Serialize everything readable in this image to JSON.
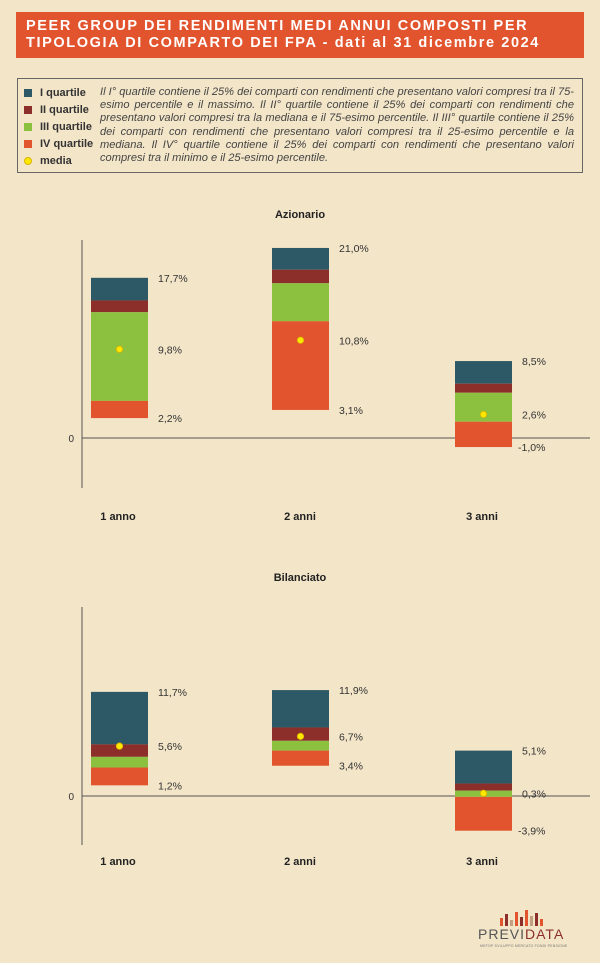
{
  "header": {
    "line1": "PEER GROUP DEI RENDIMENTI MEDI ANNUI COMPOSTI PER",
    "line2": "TIPOLOGIA DI COMPARTO DEI FPA - dati al 31 dicembre 2024"
  },
  "legend": {
    "items": [
      {
        "label": "I quartile",
        "color": "#2d5865"
      },
      {
        "label": "II quartile",
        "color": "#8c2f2b"
      },
      {
        "label": "III quartile",
        "color": "#8cc140"
      },
      {
        "label": "IV quartile",
        "color": "#e2542d"
      }
    ],
    "media_label": "media",
    "media_color": "#ffe800",
    "description": "Il I° quartile contiene il 25% dei comparti con rendimenti che presentano valori compresi tra il 75-esimo percentile e il massimo. Il II° quartile contiene il 25% dei comparti con rendimenti che presentano valori compresi tra la mediana e il 75-esimo percentile. Il III° quartile contiene il 25% dei comparti con rendimenti che presentano valori compresi tra il 25-esimo percentile e la mediana. Il IV° quartile contiene il 25% dei comparti con rendimenti che presentano valori compresi tra il minimo e il 25-esimo percentile."
  },
  "chart_data": [
    {
      "type": "bar",
      "title": "Azionario",
      "zero_label": "0",
      "categories": [
        "1 anno",
        "2 anni",
        "3 anni"
      ],
      "series": [
        {
          "name": "I quartile",
          "low": [
            15.2,
            18.6,
            6.0
          ],
          "high": [
            17.7,
            21.0,
            8.5
          ]
        },
        {
          "name": "II quartile",
          "low": [
            13.9,
            17.1,
            5.0
          ],
          "high": [
            15.2,
            18.6,
            6.0
          ]
        },
        {
          "name": "III quartile",
          "low": [
            4.1,
            12.9,
            1.8
          ],
          "high": [
            13.9,
            17.1,
            5.0
          ]
        },
        {
          "name": "IV quartile",
          "low": [
            2.2,
            3.1,
            -1.0
          ],
          "high": [
            4.1,
            12.9,
            1.8
          ]
        }
      ],
      "media": [
        9.8,
        10.8,
        2.6
      ],
      "labels": [
        {
          "max": "17,7%",
          "media": "9,8%",
          "min": "2,2%"
        },
        {
          "max": "21,0%",
          "media": "10,8%",
          "min": "3,1%"
        },
        {
          "max": "8,5%",
          "media": "2,6%",
          "min": "-1,0%"
        }
      ]
    },
    {
      "type": "bar",
      "title": "Bilanciato",
      "zero_label": "0",
      "categories": [
        "1 anno",
        "2 anni",
        "3 anni"
      ],
      "series": [
        {
          "name": "I quartile",
          "low": [
            5.8,
            7.7,
            1.4
          ],
          "high": [
            11.7,
            11.9,
            5.1
          ]
        },
        {
          "name": "II quartile",
          "low": [
            4.4,
            6.2,
            0.6
          ],
          "high": [
            5.8,
            7.7,
            1.4
          ]
        },
        {
          "name": "III quartile",
          "low": [
            3.2,
            5.1,
            -0.1
          ],
          "high": [
            4.4,
            6.2,
            0.6
          ]
        },
        {
          "name": "IV quartile",
          "low": [
            1.2,
            3.4,
            -3.9
          ],
          "high": [
            3.2,
            5.1,
            -0.1
          ]
        }
      ],
      "media": [
        5.6,
        6.7,
        0.3
      ],
      "labels": [
        {
          "max": "11,7%",
          "media": "5,6%",
          "min": "1,2%"
        },
        {
          "max": "11,9%",
          "media": "6,7%",
          "min": "3,4%"
        },
        {
          "max": "5,1%",
          "media": "0,3%",
          "min": "-3,9%"
        }
      ]
    }
  ],
  "logo": {
    "text_a": "PREVI",
    "text_b": "DATA",
    "subtitle": "MEFOP SVILUPPO MERCATO FONDI PENSIONE"
  }
}
